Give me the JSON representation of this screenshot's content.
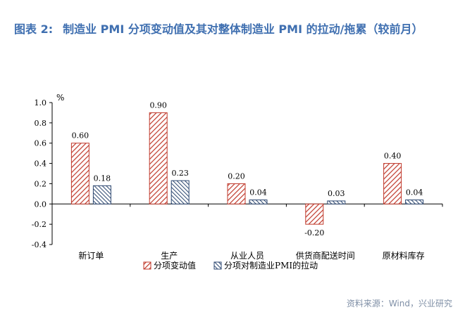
{
  "title": {
    "label": "图表 2:",
    "text": "制造业 PMI 分项变动值及其对整体制造业 PMI 的拉动/拖累（较前月）"
  },
  "source": "资料来源：Wind，兴业研究",
  "colors": {
    "title": "#3f6fb0",
    "series1": "#c0392b",
    "series2": "#2c4770"
  },
  "chart_data": {
    "type": "bar",
    "categories": [
      "新订单",
      "生产",
      "从业人员",
      "供货商配送时间",
      "原材料库存"
    ],
    "series": [
      {
        "name": "分项变动值",
        "values": [
          0.6,
          0.9,
          0.2,
          -0.2,
          0.4
        ],
        "labels": [
          "0.60",
          "0.90",
          "0.20",
          "-0.20",
          "0.40"
        ]
      },
      {
        "name": "分项对制造业PMI的拉动",
        "values": [
          0.18,
          0.23,
          0.04,
          0.03,
          0.04
        ],
        "labels": [
          "0.18",
          "0.23",
          "0.04",
          "0.03",
          "0.04"
        ]
      }
    ],
    "ylabel": "%",
    "ylim": [
      -0.4,
      1.0
    ],
    "yticks": [
      "-0.4",
      "-0.2",
      "0.0",
      "0.2",
      "0.4",
      "0.6",
      "0.8",
      "1.0"
    ],
    "legend": "bottom",
    "grid": false
  }
}
